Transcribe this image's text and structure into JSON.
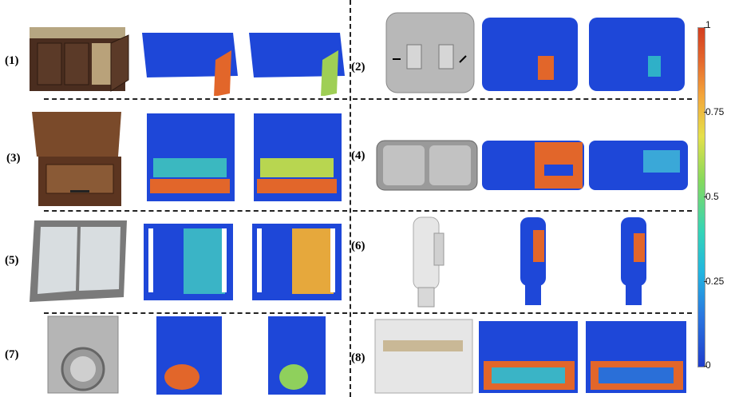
{
  "panels": [
    {
      "label": "(1)"
    },
    {
      "label": "(2)"
    },
    {
      "label": "(3)"
    },
    {
      "label": "(4)"
    },
    {
      "label": "(5)"
    },
    {
      "label": "(6)"
    },
    {
      "label": "(7)"
    },
    {
      "label": "(8)"
    }
  ],
  "colorbar": {
    "ticks": [
      "1",
      "0.75",
      "0.5",
      "0.25",
      "0"
    ],
    "colors": {
      "low": "#1f3dcc",
      "mid": "#e5e04a",
      "high": "#d33e1f"
    }
  },
  "icons": {
    "cabinet": "cabinet-render",
    "switch": "switch-render",
    "drawer": "nightstand-render",
    "window": "window-render",
    "bottle": "bottle-render",
    "washer": "washing-machine-render",
    "heater": "box-render"
  }
}
